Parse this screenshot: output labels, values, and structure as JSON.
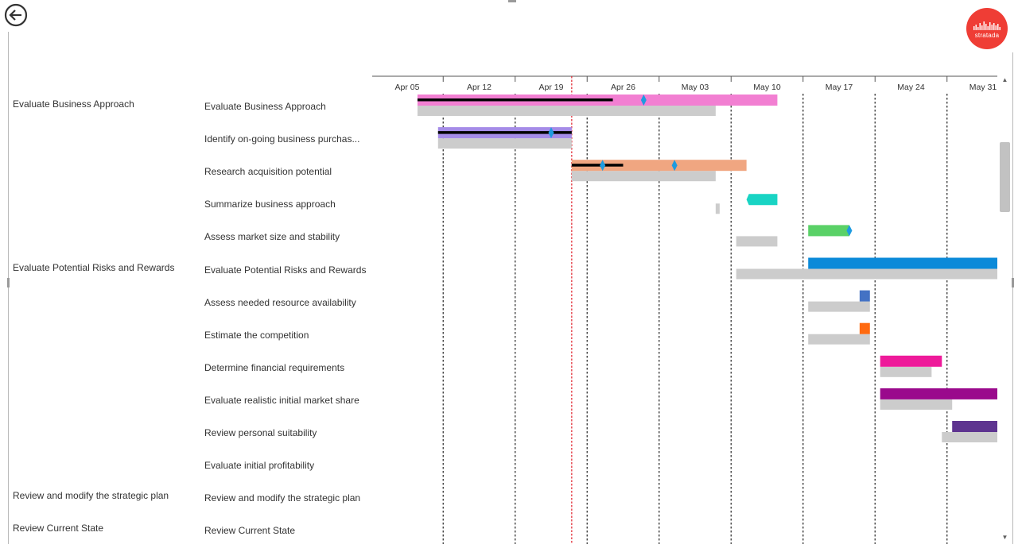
{
  "logo": {
    "text": "stratada"
  },
  "chart_data": {
    "type": "gantt",
    "timeline": [
      "Apr 05",
      "Apr 12",
      "Apr 19",
      "Apr 26",
      "May 03",
      "May 10",
      "May 17",
      "May 24",
      "May 31"
    ],
    "today": "Apr 21",
    "rows": [
      {
        "group": "Evaluate Business Approach",
        "task": "Evaluate Business Approach",
        "color": "#f27fd2",
        "start": "Apr 06",
        "end": "May 11",
        "baseline_start": "Apr 06",
        "baseline_end": "May 05",
        "progress_end": "Apr 25",
        "milestones": [
          "Apr 28"
        ]
      },
      {
        "group": "",
        "task": "Identify on-going business purchas...",
        "color": "#a58ce8",
        "start": "Apr 08",
        "end": "Apr 21",
        "baseline_start": "Apr 08",
        "baseline_end": "Apr 21",
        "progress_end": "Apr 21",
        "milestones": [
          "Apr 19"
        ]
      },
      {
        "group": "",
        "task": "Research acquisition potential",
        "color": "#f0a681",
        "start": "Apr 21",
        "end": "May 08",
        "baseline_start": "Apr 21",
        "baseline_end": "May 05",
        "progress_end": "Apr 26",
        "milestones": [
          "Apr 24",
          "May 01"
        ]
      },
      {
        "group": "",
        "task": "Summarize business approach",
        "color": "#19d4c4",
        "start": "May 08",
        "end": "May 11",
        "baseline_start": "May 05",
        "baseline_end": "May 05",
        "progress_end": null,
        "milestones": []
      },
      {
        "group": "",
        "task": "Assess market size and stability",
        "color": "#5ad167",
        "start": "May 14",
        "end": "May 18",
        "baseline_start": "May 07",
        "baseline_end": "May 11",
        "progress_end": null,
        "milestones": [
          "May 18"
        ]
      },
      {
        "group": "Evaluate Potential Risks and Rewards",
        "task": "Evaluate Potential Risks and Rewards",
        "color": "#0b8ad9",
        "start": "May 14",
        "end": "Jun 03",
        "baseline_start": "May 07",
        "baseline_end": "Jun 03",
        "progress_end": null,
        "milestones": []
      },
      {
        "group": "",
        "task": "Assess needed resource availability",
        "color": "#4472c4",
        "start": "May 19",
        "end": "May 20",
        "baseline_start": "May 14",
        "baseline_end": "May 20",
        "progress_end": null,
        "milestones": []
      },
      {
        "group": "",
        "task": "Estimate the competition",
        "color": "#ff6a10",
        "start": "May 19",
        "end": "May 20",
        "baseline_start": "May 14",
        "baseline_end": "May 20",
        "progress_end": null,
        "milestones": []
      },
      {
        "group": "",
        "task": "Determine financial requirements",
        "color": "#ee1a9a",
        "start": "May 21",
        "end": "May 27",
        "baseline_start": "May 21",
        "baseline_end": "May 26",
        "progress_end": null,
        "milestones": []
      },
      {
        "group": "",
        "task": "Evaluate realistic initial market share",
        "color": "#9a098c",
        "start": "May 21",
        "end": "Jun 02",
        "baseline_start": "May 21",
        "baseline_end": "May 28",
        "progress_end": null,
        "milestones": []
      },
      {
        "group": "",
        "task": "Review personal suitability",
        "color": "#5e3490",
        "start": "May 28",
        "end": "Jun 03",
        "baseline_start": "May 27",
        "baseline_end": "Jun 03",
        "progress_end": null,
        "milestones": []
      },
      {
        "group": "",
        "task": "Evaluate initial profitability",
        "color": "",
        "start": null,
        "end": null,
        "baseline_start": null,
        "baseline_end": null,
        "progress_end": null,
        "milestones": []
      },
      {
        "group": "Review and modify the strategic plan",
        "task": "Review and modify the strategic plan",
        "color": "",
        "start": null,
        "end": null,
        "baseline_start": null,
        "baseline_end": null,
        "progress_end": null,
        "milestones": []
      },
      {
        "group": "Review Current State",
        "task": "Review Current State",
        "color": "",
        "start": null,
        "end": null,
        "baseline_start": null,
        "baseline_end": null,
        "progress_end": null,
        "milestones": []
      }
    ]
  },
  "colors": {
    "baseline": "#cccccc",
    "progress": "#000000",
    "milestone": "#1e9be0",
    "today_line": "#e0202a",
    "gridline": "#333333"
  }
}
